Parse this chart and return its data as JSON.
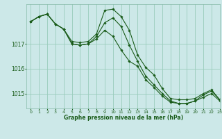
{
  "background_color": "#cce8e8",
  "plot_bg_color": "#cce8e8",
  "grid_color": "#99ccbb",
  "line_color": "#1a5c1a",
  "marker_color": "#1a5c1a",
  "xlabel": "Graphe pression niveau de la mer (hPa)",
  "xlim": [
    -0.5,
    23
  ],
  "ylim": [
    1014.4,
    1018.6
  ],
  "yticks": [
    1015,
    1016,
    1017
  ],
  "xticks": [
    0,
    1,
    2,
    3,
    4,
    5,
    6,
    7,
    8,
    9,
    10,
    11,
    12,
    13,
    14,
    15,
    16,
    17,
    18,
    19,
    20,
    21,
    22,
    23
  ],
  "series": [
    [
      1017.9,
      1018.1,
      1018.2,
      1017.8,
      1017.6,
      1017.1,
      1017.05,
      1017.1,
      1017.4,
      1018.35,
      1018.4,
      1018.1,
      1017.55,
      1016.55,
      1016.05,
      1015.75,
      1015.2,
      1014.8,
      1014.75,
      1014.75,
      1014.8,
      1015.0,
      1015.15,
      1014.75
    ],
    [
      1017.9,
      1018.1,
      1018.2,
      1017.8,
      1017.6,
      1017.0,
      1016.95,
      1017.0,
      1017.2,
      1017.55,
      1017.3,
      1016.75,
      1016.3,
      1016.1,
      1015.55,
      1015.25,
      1014.9,
      1014.65,
      1014.6,
      1014.6,
      1014.7,
      1014.85,
      1015.0,
      1014.7
    ],
    [
      1017.9,
      1018.1,
      1018.2,
      1017.8,
      1017.6,
      1017.0,
      1016.95,
      1017.0,
      1017.3,
      1017.85,
      1018.05,
      1017.7,
      1016.95,
      1016.3,
      1015.7,
      1015.35,
      1015.0,
      1014.7,
      1014.6,
      1014.6,
      1014.7,
      1014.95,
      1015.1,
      1014.75
    ]
  ]
}
